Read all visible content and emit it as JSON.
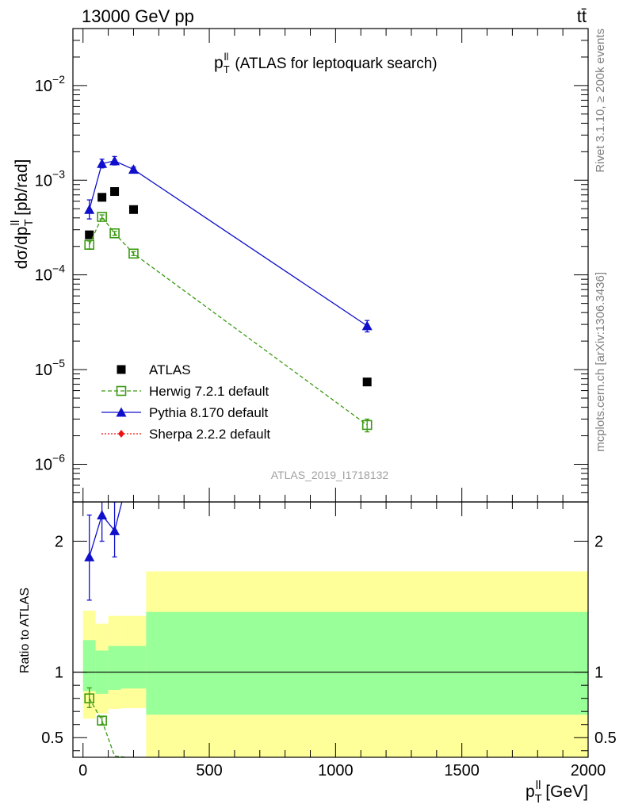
{
  "header": {
    "left": "13000 GeV pp",
    "right": "tt̄"
  },
  "main_title": {
    "p": "p",
    "sup": "ll",
    "sub": "T",
    "rest": "(ATLAS for leptoquark search)"
  },
  "side_labels": {
    "rivet": "Rivet 3.1.10, ≥ 200k events",
    "mcplots": "mcplots.cern.ch [arXiv:1306.3436]"
  },
  "watermark": "ATLAS_2019_I1718132",
  "chart_data": [
    {
      "type": "scatter",
      "panel": "main",
      "ylabel": {
        "pre": "dσ/dp",
        "sup": "ll",
        "sub": "T",
        "post": " [pb/rad]"
      },
      "y_scale": "log",
      "ylim": [
        4e-07,
        0.04
      ],
      "xlim": [
        -40,
        2000
      ],
      "y_ticks": [
        {
          "value": 1e-06,
          "base": "10",
          "exp": "−6"
        },
        {
          "value": 1e-05,
          "base": "10",
          "exp": "−5"
        },
        {
          "value": 0.0001,
          "base": "10",
          "exp": "−4"
        },
        {
          "value": 0.001,
          "base": "10",
          "exp": "−3"
        },
        {
          "value": 0.01,
          "base": "10",
          "exp": "−2"
        }
      ],
      "series": [
        {
          "name": "ATLAS",
          "color": "#000000",
          "marker": "filled-square",
          "x": [
            25,
            75,
            125,
            200,
            1125
          ],
          "y": [
            0.000265,
            0.00066,
            0.00076,
            0.00049,
            7.4e-06
          ]
        },
        {
          "name": "Herwig 7.2.1 default",
          "color": "#3a9a10",
          "marker": "open-square",
          "line": "dashed",
          "x": [
            25,
            75,
            125,
            200,
            1125
          ],
          "y": [
            0.000208,
            0.00041,
            0.000275,
            0.000168,
            2.6e-06
          ],
          "err_lo": [
            0.000188,
            0.00039,
            0.000262,
            0.00016,
            2.2e-06
          ],
          "err_hi": [
            0.000228,
            0.00043,
            0.000288,
            0.000176,
            3e-06
          ]
        },
        {
          "name": "Pythia 8.170 default",
          "color": "#1010cc",
          "marker": "filled-triangle",
          "line": "solid",
          "x": [
            25,
            75,
            125,
            200,
            1125
          ],
          "y": [
            0.00049,
            0.0015,
            0.0016,
            0.0013,
            2.9e-05
          ],
          "err_lo": [
            0.00039,
            0.00135,
            0.00145,
            0.00122,
            2.5e-05
          ],
          "err_hi": [
            0.00062,
            0.00167,
            0.00178,
            0.00138,
            3.3e-05
          ]
        },
        {
          "name": "Sherpa 2.2.2 default",
          "color": "#ee1111",
          "marker": "filled-diamond",
          "line": "dotted",
          "x": [],
          "y": []
        }
      ]
    },
    {
      "type": "ratio",
      "panel": "ratio",
      "ylabel": "Ratio to ATLAS",
      "xlabel": {
        "pre": "p",
        "sup": "ll",
        "sub": "T",
        "post": " [GeV]"
      },
      "ylim": [
        0.35,
        2.3
      ],
      "xlim": [
        -40,
        2000
      ],
      "x_ticks": [
        "0",
        "500",
        "1000",
        "1500",
        "2000"
      ],
      "x_tick_values": [
        0,
        500,
        1000,
        1500,
        2000
      ],
      "y_ticks": [
        "0.5",
        "1",
        "2"
      ],
      "y_tick_values": [
        0.5,
        1,
        2
      ],
      "bins": [
        {
          "lo": 0,
          "hi": 50,
          "stat_lo": 0.855,
          "stat_hi": 1.245,
          "tot_lo": 0.645,
          "tot_hi": 1.47
        },
        {
          "lo": 50,
          "hi": 100,
          "stat_lo": 0.835,
          "stat_hi": 1.165,
          "tot_lo": 0.685,
          "tot_hi": 1.37
        },
        {
          "lo": 100,
          "hi": 150,
          "stat_lo": 0.865,
          "stat_hi": 1.2,
          "tot_lo": 0.72,
          "tot_hi": 1.43
        },
        {
          "lo": 150,
          "hi": 250,
          "stat_lo": 0.875,
          "stat_hi": 1.2,
          "tot_lo": 0.725,
          "tot_hi": 1.43
        },
        {
          "lo": 250,
          "hi": 2000,
          "stat_lo": 0.675,
          "stat_hi": 1.46,
          "tot_lo": 0.35,
          "tot_hi": 1.77
        }
      ],
      "series": [
        {
          "name": "Herwig 7.2.1 default",
          "color": "#3a9a10",
          "x": [
            25,
            75,
            125,
            200
          ],
          "y": [
            0.8,
            0.63,
            0.36,
            0.343
          ],
          "err_lo": [
            0.73,
            0.6,
            0.34,
            0.33
          ],
          "err_hi": [
            0.88,
            0.66,
            0.38,
            0.355
          ],
          "marker_points": [
            0,
            1
          ]
        },
        {
          "name": "Pythia 8.170 default",
          "color": "#1010cc",
          "x": [
            25,
            75,
            125,
            200
          ],
          "y": [
            1.88,
            2.2,
            2.08,
            2.65
          ],
          "err_lo": [
            1.55,
            2.0,
            1.88,
            2.5
          ],
          "err_hi": [
            2.2,
            2.4,
            2.3,
            2.8
          ],
          "marker_points": [
            0,
            1,
            2
          ]
        }
      ]
    }
  ]
}
